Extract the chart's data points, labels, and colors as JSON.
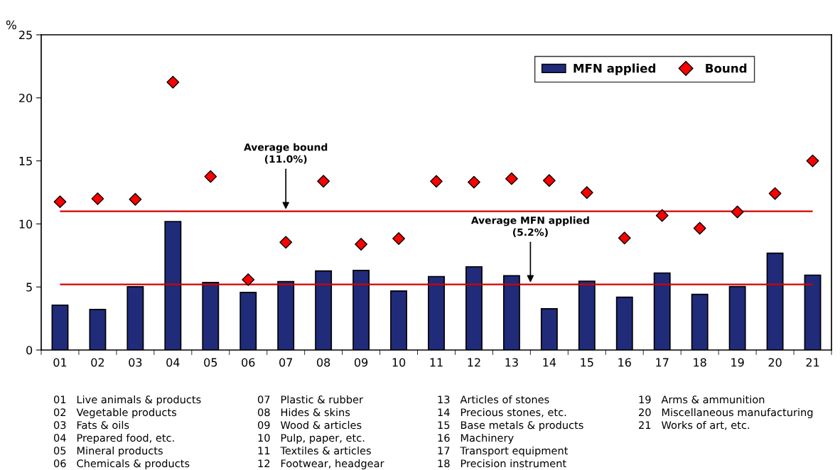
{
  "chart_data": {
    "type": "bar",
    "ylabel": "%",
    "categories": [
      "01",
      "02",
      "03",
      "04",
      "05",
      "06",
      "07",
      "08",
      "09",
      "10",
      "11",
      "12",
      "13",
      "14",
      "15",
      "16",
      "17",
      "18",
      "19",
      "20",
      "21"
    ],
    "series": [
      {
        "name": "MFN applied",
        "color": "#202b7a",
        "values": [
          3.56,
          3.22,
          5.02,
          10.19,
          5.36,
          4.57,
          5.43,
          6.27,
          6.31,
          4.68,
          5.83,
          6.6,
          5.89,
          3.27,
          5.46,
          4.19,
          6.11,
          4.41,
          5.03,
          7.68,
          5.94
        ]
      },
      {
        "name": "Bound",
        "type": "scatter",
        "color": "#ff0000",
        "marker": "diamond",
        "values": [
          11.76,
          12.0,
          11.95,
          21.24,
          13.76,
          5.58,
          8.54,
          13.39,
          8.39,
          8.84,
          13.38,
          13.31,
          13.59,
          13.44,
          12.49,
          8.88,
          10.67,
          9.66,
          10.95,
          12.41,
          15.0
        ]
      }
    ],
    "ylim": [
      0,
      25
    ],
    "yticks": [
      0,
      5,
      10,
      15,
      20,
      25
    ],
    "grid": false,
    "legend": "top right",
    "ref_lines": [
      {
        "axis": "y",
        "value": 11.0,
        "label": "Average bound\n(11.0%)",
        "color": "#d40000"
      },
      {
        "axis": "y",
        "value": 5.2,
        "label": "Average MFN applied\n(5.2%)",
        "color": "#d40000"
      }
    ],
    "annotations": [
      "01   Live animals & products",
      "02   Vegetable products",
      "03   Fats & oils",
      "04   Prepared food, etc.",
      "05   Mineral products",
      "06   Chemicals & products",
      "07   Plastic & rubber",
      "08   Hides & skins",
      "09   Wood & articles",
      "10   Pulp, paper, etc.",
      "11   Textiles & articles",
      "12   Footwear, headgear",
      "13   Articles of stones",
      "14   Precious stones, etc.",
      "15   Base metals & products",
      "16   Machinery",
      "17   Transport equipment",
      "18   Precision instrument",
      "19   Arms & ammunition",
      "20   Miscellaneous manufacturing",
      "21   Works of art, etc."
    ]
  }
}
